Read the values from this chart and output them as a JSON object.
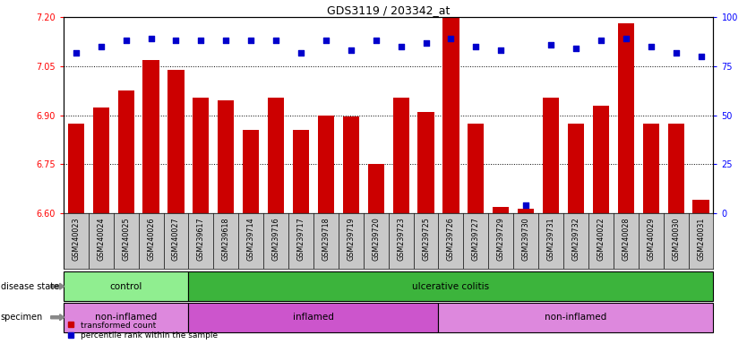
{
  "title": "GDS3119 / 203342_at",
  "samples": [
    "GSM240023",
    "GSM240024",
    "GSM240025",
    "GSM240026",
    "GSM240027",
    "GSM239617",
    "GSM239618",
    "GSM239714",
    "GSM239716",
    "GSM239717",
    "GSM239718",
    "GSM239719",
    "GSM239720",
    "GSM239723",
    "GSM239725",
    "GSM239726",
    "GSM239727",
    "GSM239729",
    "GSM239730",
    "GSM239731",
    "GSM239732",
    "GSM240022",
    "GSM240028",
    "GSM240029",
    "GSM240030",
    "GSM240031"
  ],
  "transformed_count": [
    6.875,
    6.925,
    6.975,
    7.07,
    7.04,
    6.955,
    6.945,
    6.855,
    6.955,
    6.855,
    6.9,
    6.895,
    6.75,
    6.955,
    6.91,
    7.2,
    6.875,
    6.62,
    6.615,
    6.955,
    6.875,
    6.93,
    7.18,
    6.875,
    6.875,
    6.64
  ],
  "percentile_rank": [
    82,
    85,
    88,
    89,
    88,
    88,
    88,
    88,
    88,
    82,
    88,
    83,
    88,
    85,
    87,
    89,
    85,
    83,
    4,
    86,
    84,
    88,
    89,
    85,
    82,
    80
  ],
  "disease_state_groups": [
    {
      "label": "control",
      "start": 0,
      "end": 5,
      "color": "#90EE90"
    },
    {
      "label": "ulcerative colitis",
      "start": 5,
      "end": 26,
      "color": "#3CB43C"
    }
  ],
  "specimen_groups": [
    {
      "label": "non-inflamed",
      "start": 0,
      "end": 5,
      "color": "#DD88DD"
    },
    {
      "label": "inflamed",
      "start": 5,
      "end": 15,
      "color": "#CC55CC"
    },
    {
      "label": "non-inflamed",
      "start": 15,
      "end": 26,
      "color": "#DD88DD"
    }
  ],
  "ylim_left": [
    6.6,
    7.2
  ],
  "ylim_right": [
    0,
    100
  ],
  "yticks_left": [
    6.6,
    6.75,
    6.9,
    7.05,
    7.2
  ],
  "yticks_right": [
    0,
    25,
    50,
    75,
    100
  ],
  "bar_color": "#CC0000",
  "dot_color": "#0000CC",
  "tick_bg_color": "#C8C8C8",
  "plot_bg": "#FFFFFF"
}
